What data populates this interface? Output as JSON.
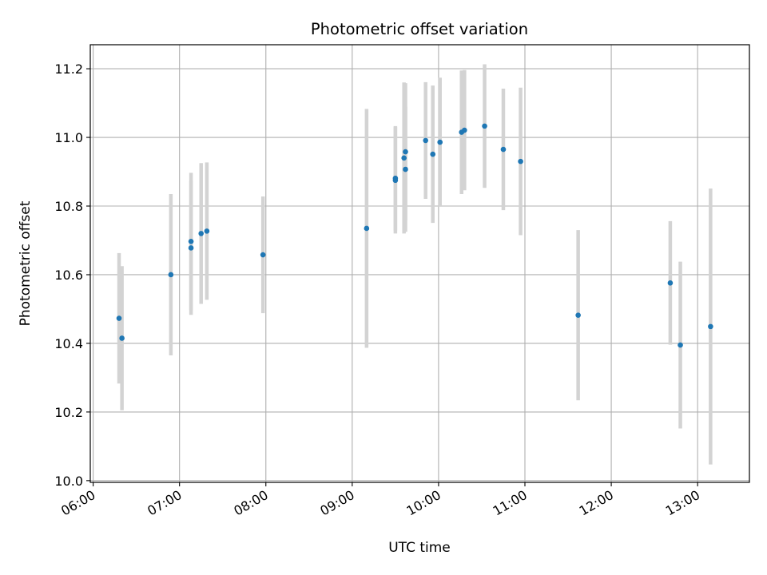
{
  "chart_data": {
    "type": "scatter",
    "title": "Photometric offset variation",
    "xlabel": "UTC time",
    "ylabel": "Photometric offset",
    "x_tick_labels": [
      "06:00",
      "07:00",
      "08:00",
      "09:00",
      "10:00",
      "11:00",
      "12:00",
      "13:00"
    ],
    "y_tick_labels": [
      "10.0",
      "10.2",
      "10.4",
      "10.6",
      "10.8",
      "11.0",
      "11.2"
    ],
    "xlim": [
      "05:58",
      "13:36"
    ],
    "ylim": [
      9.995,
      11.27
    ],
    "grid": true,
    "errorbar_color": "#d3d3d3",
    "marker_color": "#1f77b4",
    "points": [
      {
        "x": "06:18",
        "y": 10.473,
        "err": 0.19
      },
      {
        "x": "06:20",
        "y": 10.415,
        "err": 0.21
      },
      {
        "x": "06:54",
        "y": 10.6,
        "err": 0.235
      },
      {
        "x": "07:08",
        "y": 10.678,
        "err": 0.195
      },
      {
        "x": "07:08",
        "y": 10.697,
        "err": 0.2
      },
      {
        "x": "07:15",
        "y": 10.72,
        "err": 0.205
      },
      {
        "x": "07:19",
        "y": 10.727,
        "err": 0.2
      },
      {
        "x": "07:58",
        "y": 10.658,
        "err": 0.17
      },
      {
        "x": "09:10",
        "y": 10.735,
        "err": 0.348
      },
      {
        "x": "09:30",
        "y": 10.875,
        "err": 0.155
      },
      {
        "x": "09:30",
        "y": 10.881,
        "err": 0.152
      },
      {
        "x": "09:36",
        "y": 10.94,
        "err": 0.22
      },
      {
        "x": "09:37",
        "y": 10.958,
        "err": 0.2
      },
      {
        "x": "09:37",
        "y": 10.907,
        "err": 0.182
      },
      {
        "x": "09:51",
        "y": 10.991,
        "err": 0.17
      },
      {
        "x": "09:56",
        "y": 10.951,
        "err": 0.2
      },
      {
        "x": "10:01",
        "y": 10.986,
        "err": 0.188
      },
      {
        "x": "10:16",
        "y": 11.015,
        "err": 0.18
      },
      {
        "x": "10:18",
        "y": 11.021,
        "err": 0.175
      },
      {
        "x": "10:32",
        "y": 11.033,
        "err": 0.18
      },
      {
        "x": "10:45",
        "y": 10.965,
        "err": 0.177
      },
      {
        "x": "10:57",
        "y": 10.93,
        "err": 0.215
      },
      {
        "x": "11:37",
        "y": 10.482,
        "err": 0.248
      },
      {
        "x": "12:41",
        "y": 10.576,
        "err": 0.18
      },
      {
        "x": "12:48",
        "y": 10.395,
        "err": 0.243
      },
      {
        "x": "13:09",
        "y": 10.449,
        "err": 0.402
      }
    ]
  }
}
